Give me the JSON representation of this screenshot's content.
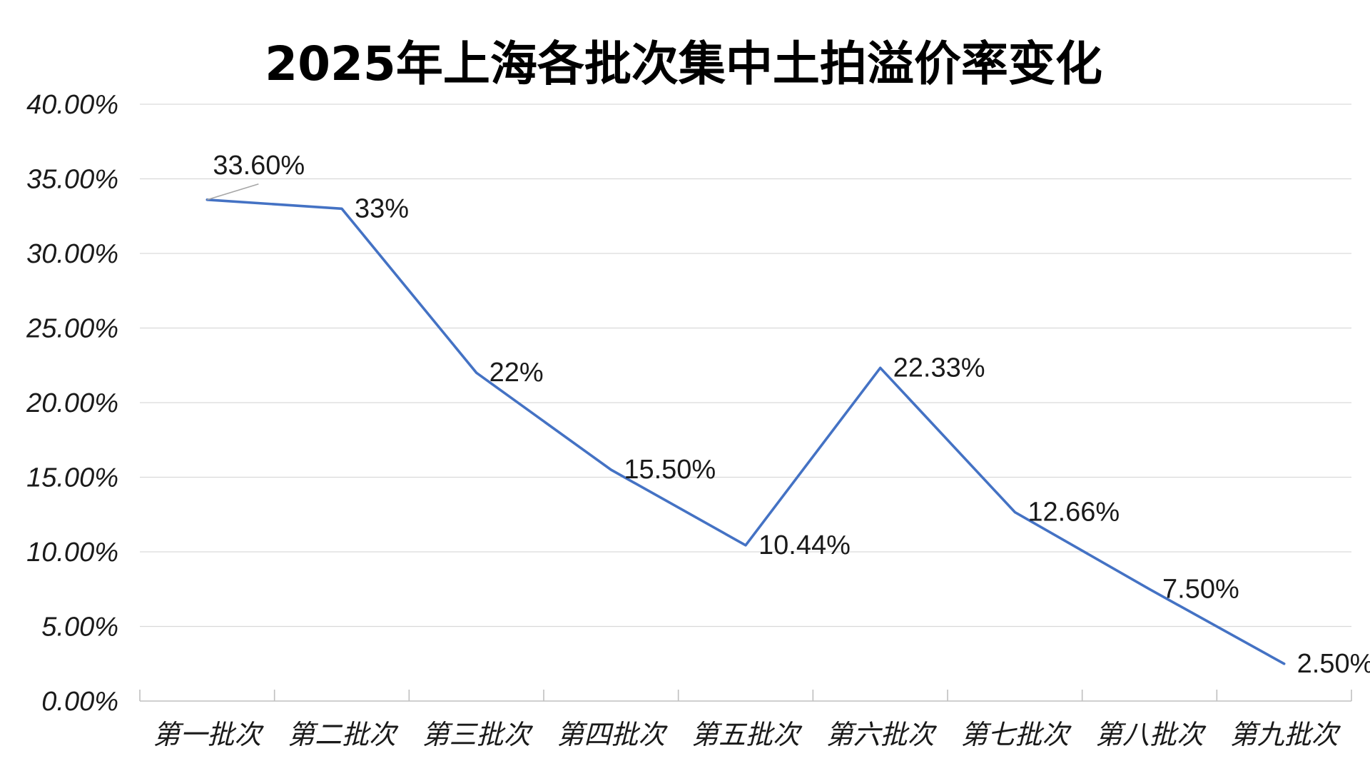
{
  "chart_data": {
    "type": "line",
    "title": "2025年上海各批次集中土拍溢价率变化",
    "xlabel": "",
    "ylabel": "",
    "categories": [
      "第一批次",
      "第二批次",
      "第三批次",
      "第四批次",
      "第五批次",
      "第六批次",
      "第七批次",
      "第八批次",
      "第九批次"
    ],
    "series": [
      {
        "values": [
          33.6,
          33.0,
          22.0,
          15.5,
          10.44,
          22.33,
          12.66,
          7.5,
          2.5
        ],
        "labels": [
          "33.60%",
          "33%",
          "22%",
          "15.50%",
          "10.44%",
          "22.33%",
          "12.66%",
          "7.50%",
          "2.50%"
        ],
        "color": "#4472C4"
      }
    ],
    "ylim": [
      0,
      40
    ],
    "y_ticks": [
      0,
      5,
      10,
      15,
      20,
      25,
      30,
      35,
      40
    ],
    "y_tick_labels": [
      "0.00%",
      "5.00%",
      "10.00%",
      "15.00%",
      "20.00%",
      "25.00%",
      "30.00%",
      "35.00%",
      "40.00%"
    ],
    "grid": true,
    "legend": "none"
  }
}
